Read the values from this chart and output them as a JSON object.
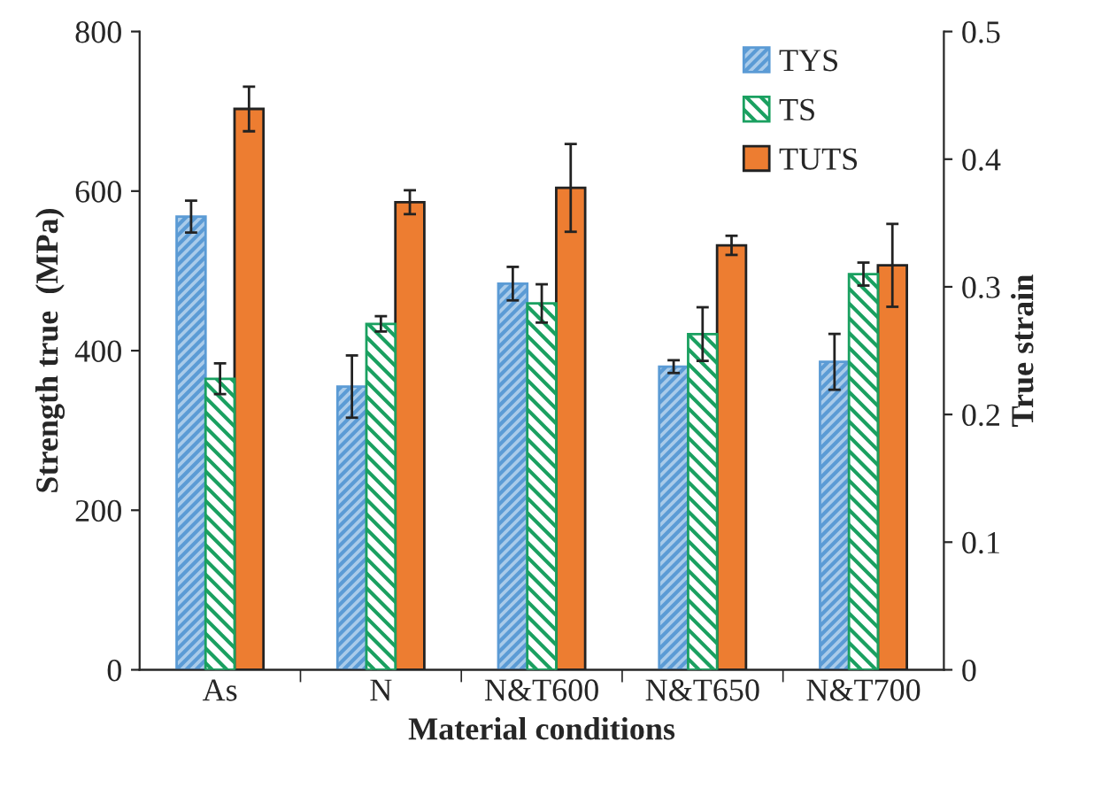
{
  "chart_data": {
    "type": "bar",
    "xlabel": "Material conditions",
    "ylabel": "Strength true  (MPa)",
    "y2label": "True strain",
    "categories": [
      "As",
      "N",
      "N&T600",
      "N&T650",
      "N&T700"
    ],
    "series": [
      {
        "name": "TYS",
        "color": "#5b9bd5",
        "values": [
          568,
          355,
          484,
          380,
          386
        ],
        "errors": [
          20,
          39,
          21,
          8,
          35
        ]
      },
      {
        "name": "TS",
        "color": "#1aa060",
        "axis": "y2",
        "values": [
          0.228,
          0.271,
          0.287,
          0.263,
          0.31
        ],
        "errors": [
          0.012,
          0.006,
          0.015,
          0.021,
          0.009
        ]
      },
      {
        "name": "TUTS",
        "color": "#ed7d31",
        "values": [
          703,
          586,
          604,
          532,
          507
        ],
        "errors": [
          28,
          15,
          55,
          12,
          52
        ]
      }
    ],
    "ylim": [
      0,
      800
    ],
    "yticks": [
      0,
      200,
      400,
      600,
      800
    ],
    "y2lim": [
      0,
      0.5
    ],
    "y2ticks": [
      {
        "value": 0,
        "label": "0"
      },
      0.1,
      0.2,
      0.3,
      0.4,
      0.5
    ],
    "legend": "top right",
    "grid": false
  }
}
